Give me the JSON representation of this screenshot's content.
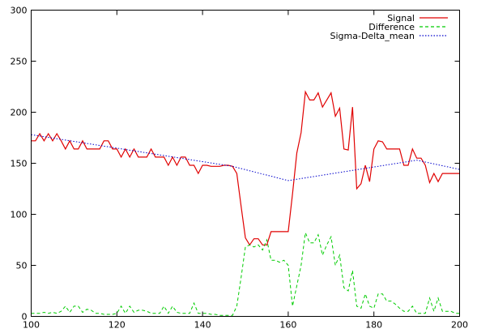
{
  "chart_data": {
    "type": "line",
    "title": "",
    "xlabel": "",
    "ylabel": "",
    "xlim": [
      100,
      200
    ],
    "ylim": [
      0,
      300
    ],
    "xticks": [
      100,
      120,
      140,
      160,
      180,
      200
    ],
    "yticks": [
      0,
      50,
      100,
      150,
      200,
      250,
      300
    ],
    "grid": false,
    "legend": "top-right",
    "series": [
      {
        "name": "Signal",
        "style": "solid",
        "color": "#e00000",
        "x": [
          100,
          101,
          102,
          103,
          104,
          105,
          106,
          107,
          108,
          109,
          110,
          111,
          112,
          113,
          114,
          115,
          116,
          117,
          118,
          119,
          120,
          121,
          122,
          123,
          124,
          125,
          126,
          127,
          128,
          129,
          130,
          131,
          132,
          133,
          134,
          135,
          136,
          137,
          138,
          139,
          140,
          141,
          142,
          143,
          144,
          145,
          146,
          147,
          148,
          149,
          150,
          151,
          152,
          153,
          154,
          155,
          156,
          157,
          158,
          159,
          160,
          161,
          162,
          163,
          164,
          165,
          166,
          167,
          168,
          169,
          170,
          171,
          172,
          173,
          174,
          175,
          176,
          177,
          178,
          179,
          180,
          181,
          182,
          183,
          184,
          185,
          186,
          187,
          188,
          189,
          190,
          191,
          192,
          193,
          194,
          195,
          196,
          197,
          198,
          199,
          200
        ],
        "values": [
          172,
          172,
          179,
          172,
          179,
          172,
          179,
          172,
          164,
          172,
          164,
          164,
          172,
          164,
          164,
          164,
          164,
          172,
          172,
          164,
          164,
          156,
          164,
          156,
          164,
          156,
          156,
          156,
          164,
          156,
          156,
          156,
          148,
          156,
          148,
          156,
          156,
          148,
          148,
          140,
          148,
          148,
          147,
          147,
          147,
          148,
          148,
          147,
          140,
          108,
          77,
          70,
          76,
          76,
          70,
          70,
          83,
          83,
          83,
          83,
          83,
          120,
          160,
          180,
          220,
          212,
          212,
          219,
          205,
          212,
          219,
          196,
          204,
          164,
          163,
          205,
          125,
          130,
          148,
          132,
          164,
          172,
          171,
          164,
          164,
          164,
          164,
          148,
          148,
          164,
          155,
          155,
          148,
          131,
          140,
          132,
          140,
          140,
          140,
          140,
          140
        ]
      },
      {
        "name": "Difference",
        "style": "dashed",
        "color": "#00cc00",
        "x": [
          100,
          101,
          102,
          103,
          104,
          105,
          106,
          107,
          108,
          109,
          110,
          111,
          112,
          113,
          114,
          115,
          116,
          117,
          118,
          119,
          120,
          121,
          122,
          123,
          124,
          125,
          126,
          127,
          128,
          129,
          130,
          131,
          132,
          133,
          134,
          135,
          136,
          137,
          138,
          139,
          140,
          141,
          142,
          143,
          144,
          145,
          146,
          147,
          148,
          149,
          150,
          151,
          152,
          153,
          154,
          155,
          156,
          157,
          158,
          159,
          160,
          161,
          162,
          163,
          164,
          165,
          166,
          167,
          168,
          169,
          170,
          171,
          172,
          173,
          174,
          175,
          176,
          177,
          178,
          179,
          180,
          181,
          182,
          183,
          184,
          185,
          186,
          187,
          188,
          189,
          190,
          191,
          192,
          193,
          194,
          195,
          196,
          197,
          198,
          199,
          200
        ],
        "values": [
          3,
          3,
          3,
          4,
          3,
          4,
          3,
          5,
          10,
          4,
          10,
          10,
          4,
          7,
          6,
          3,
          3,
          2,
          2,
          2,
          3,
          10,
          3,
          10,
          4,
          6,
          6,
          5,
          3,
          3,
          3,
          10,
          3,
          10,
          4,
          3,
          3,
          3,
          13,
          3,
          3,
          3,
          2,
          2,
          1,
          1,
          1,
          1,
          10,
          38,
          68,
          70,
          68,
          70,
          65,
          75,
          55,
          55,
          53,
          55,
          50,
          10,
          30,
          50,
          82,
          72,
          72,
          80,
          60,
          70,
          78,
          50,
          60,
          28,
          25,
          45,
          10,
          8,
          22,
          10,
          8,
          22,
          22,
          15,
          15,
          12,
          8,
          5,
          5,
          10,
          3,
          3,
          3,
          18,
          5,
          18,
          5,
          5,
          5,
          3,
          3
        ]
      },
      {
        "name": "Sigma-Delta_mean",
        "style": "dotted",
        "color": "#0000cc",
        "x": [
          100,
          147,
          160,
          190,
          200
        ],
        "values": [
          178,
          147,
          133,
          153,
          144
        ]
      }
    ]
  }
}
